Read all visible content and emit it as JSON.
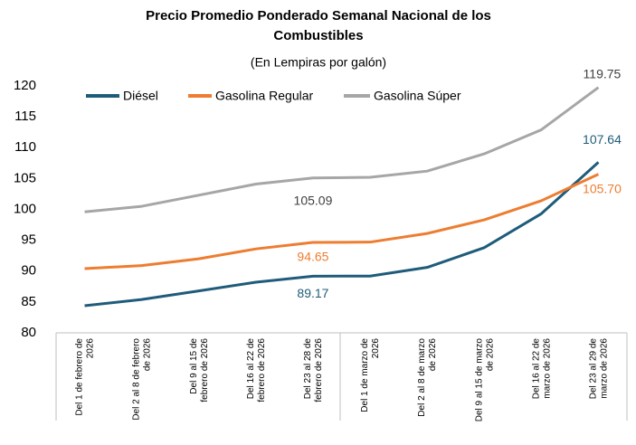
{
  "chart_data": {
    "type": "line",
    "title": "Precio Promedio Ponderado Semanal Nacional de los\nCombustibles",
    "subtitle": "(En Lempiras por galón)",
    "categories": [
      "Del 1 de febrero de\n2026",
      "Del 2 al 8 de febrero\nde 2026",
      "Del 9 al 15 de\nfebrero de 2026",
      "Del 16 al 22 de\nfebrero de 2026",
      "Del 23 al 28 de\nfebrero de 2026",
      "Del 1 de marzo de\n2026",
      "Del 2 al 8 de marzo\nde 2026",
      "Del 9 al 15 de marzo\nde 2026",
      "Del 16 al 22 de\nmarzo de 2026",
      "Del 23 al 29 de\nmarzo de 2026"
    ],
    "series": [
      {
        "name": "Diésel",
        "color": "#1f5c7a",
        "values": [
          84.4,
          85.4,
          86.8,
          88.2,
          89.17,
          89.2,
          90.6,
          93.8,
          99.3,
          107.64
        ],
        "value_labels": [
          null,
          null,
          null,
          null,
          "89.17",
          null,
          null,
          null,
          null,
          "107.64"
        ]
      },
      {
        "name": "Gasolina Regular",
        "color": "#ed7d31",
        "values": [
          90.4,
          90.9,
          92.0,
          93.6,
          94.65,
          94.7,
          96.1,
          98.3,
          101.4,
          105.7
        ],
        "value_labels": [
          null,
          null,
          null,
          null,
          "94.65",
          null,
          null,
          null,
          null,
          "105.70"
        ]
      },
      {
        "name": "Gasolina Súper",
        "color": "#a6a6a6",
        "values": [
          99.6,
          100.5,
          102.3,
          104.1,
          105.09,
          105.2,
          106.2,
          109.0,
          112.9,
          119.75
        ],
        "value_labels": [
          null,
          null,
          null,
          null,
          "105.09",
          null,
          null,
          null,
          null,
          "119.75"
        ]
      }
    ],
    "ylim": [
      80,
      120
    ],
    "yticks": [
      80,
      85,
      90,
      95,
      100,
      105,
      110,
      115,
      120
    ],
    "grid": false
  }
}
